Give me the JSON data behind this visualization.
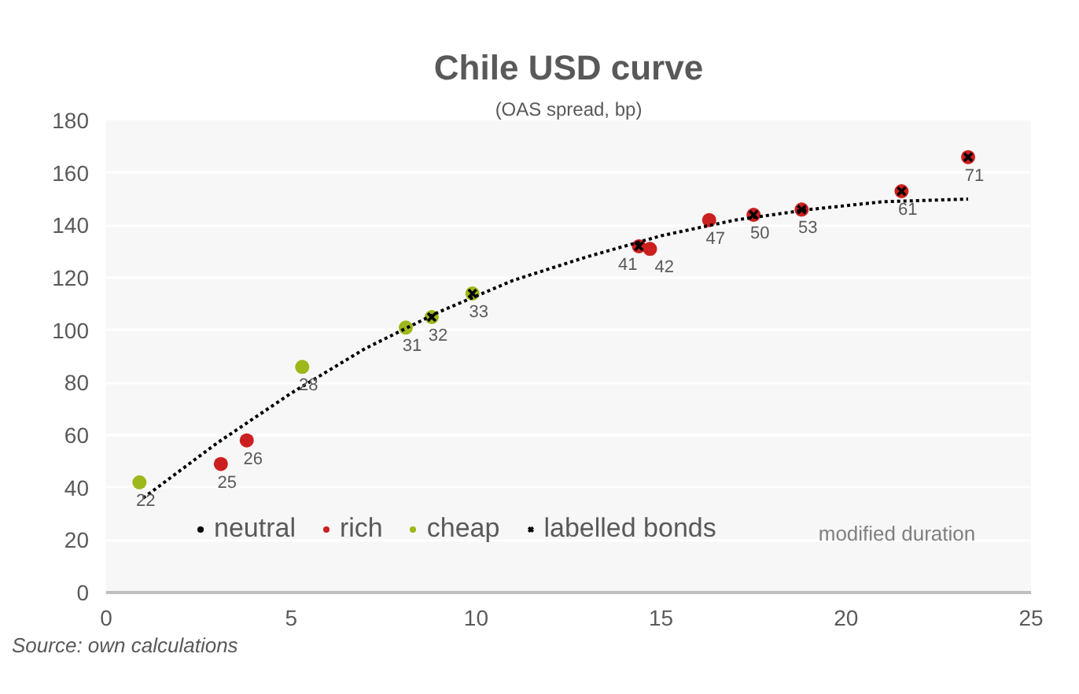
{
  "chart_data": {
    "type": "scatter",
    "title": "Chile USD curve",
    "subtitle": "(OAS spread, bp)",
    "xlabel": "modified duration",
    "annotations": [
      "Source: own calculations",
      {
        "text": "22",
        "x": 0.9,
        "y": 42
      },
      {
        "text": "25",
        "x": 3.1,
        "y": 49
      },
      {
        "text": "26",
        "x": 3.8,
        "y": 58
      },
      {
        "text": "28",
        "x": 5.3,
        "y": 86
      },
      {
        "text": "31",
        "x": 8.1,
        "y": 101
      },
      {
        "text": "32",
        "x": 8.8,
        "y": 105
      },
      {
        "text": "33",
        "x": 9.9,
        "y": 114
      },
      {
        "text": "41",
        "x": 14.4,
        "y": 132
      },
      {
        "text": "42",
        "x": 14.7,
        "y": 131
      },
      {
        "text": "47",
        "x": 16.3,
        "y": 142
      },
      {
        "text": "50",
        "x": 17.5,
        "y": 144
      },
      {
        "text": "53",
        "x": 18.8,
        "y": 146
      },
      {
        "text": "61",
        "x": 21.5,
        "y": 153
      },
      {
        "text": "71",
        "x": 23.3,
        "y": 166
      }
    ],
    "xlim": [
      0,
      25
    ],
    "ylim": [
      0,
      180
    ],
    "xticks": [
      0,
      5,
      10,
      15,
      20,
      25
    ],
    "yticks": [
      0,
      20,
      40,
      60,
      80,
      100,
      120,
      140,
      160,
      180
    ],
    "grid": "y",
    "legend": "bottom left",
    "marker": "circle",
    "series": [
      {
        "name": "neutral",
        "color": "#000000"
      },
      {
        "name": "rich",
        "color": "#cc1f1f",
        "x": [
          3.1,
          3.8,
          14.4,
          14.7,
          16.3,
          17.5,
          18.8,
          21.5,
          23.3
        ],
        "values": [
          49,
          58,
          132,
          131,
          142,
          144,
          146,
          153,
          166
        ]
      },
      {
        "name": "cheap",
        "color": "#9cb81a",
        "x": [
          0.9,
          5.3,
          8.1,
          8.8,
          9.9
        ],
        "values": [
          42,
          86,
          101,
          105,
          114
        ]
      },
      {
        "name": "labelled bonds",
        "color": "#000000",
        "marker": "cross",
        "x": [
          8.8,
          9.9,
          14.4,
          17.5,
          18.8,
          21.5,
          23.3
        ],
        "values": [
          105,
          114,
          132,
          144,
          146,
          153,
          166
        ]
      },
      {
        "type": "line",
        "color": "#000000",
        "line_style": "dotted",
        "marker": "none",
        "x": [
          1,
          3,
          5,
          7,
          9,
          11,
          13,
          15,
          17,
          19,
          21,
          23.3
        ],
        "values": [
          36,
          57,
          76,
          93,
          107,
          119,
          128,
          136,
          142,
          146,
          149,
          150
        ]
      }
    ]
  }
}
